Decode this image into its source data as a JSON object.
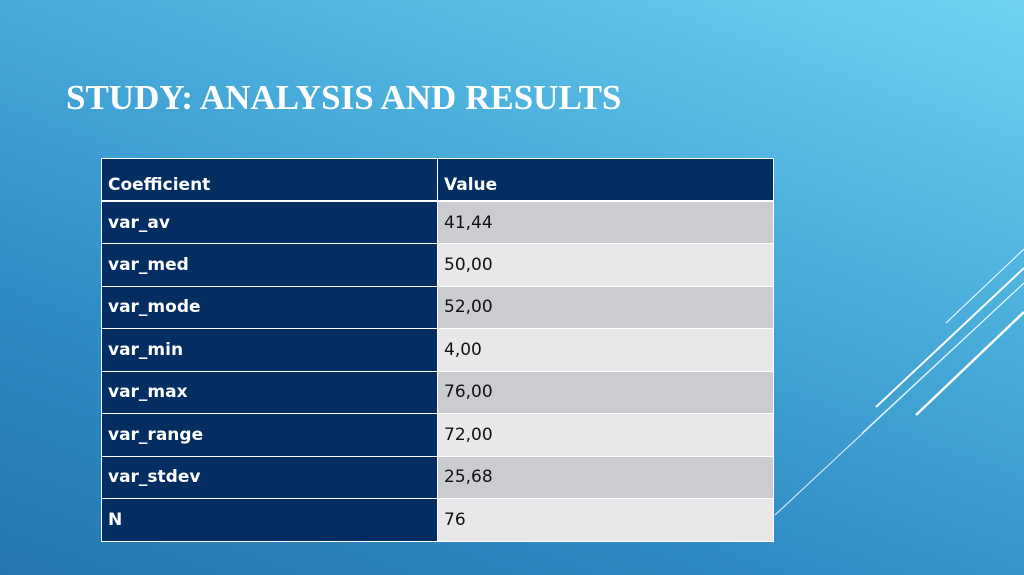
{
  "title": "STUDY: ANALYSIS AND RESULTS",
  "table": {
    "header": [
      "Coefficient",
      "Value"
    ],
    "rows": [
      [
        "var_av",
        "41,44"
      ],
      [
        "var_med",
        "50,00"
      ],
      [
        "var_mode",
        "52,00"
      ],
      [
        "var_min",
        "4,00"
      ],
      [
        "var_max",
        "76,00"
      ],
      [
        "var_range",
        "72,00"
      ],
      [
        "var_stdev",
        "25,68"
      ],
      [
        "N",
        "76"
      ]
    ]
  }
}
